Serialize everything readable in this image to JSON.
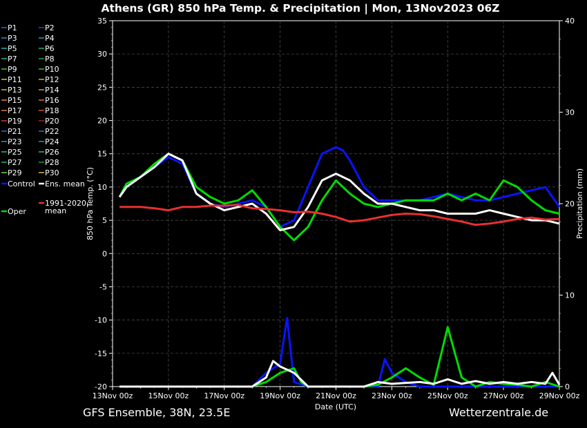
{
  "chart_data": {
    "type": "line",
    "title": "Athens  (GR)  850 hPa Temp. & Precipitation | Mon, 13Nov2023 06Z",
    "ylabel": "850 hPa Temp. (°C)",
    "y2label": "Precipitation (mm)",
    "xlabel": "Date (UTC)",
    "ylim": [
      -20,
      35
    ],
    "y2lim": [
      0,
      40
    ],
    "yticks": [
      "35",
      "30",
      "25",
      "20",
      "15",
      "10",
      "5",
      "0",
      "-5",
      "-10",
      "-15",
      "-20"
    ],
    "y2ticks": [
      "40",
      "30",
      "20",
      "10",
      "0"
    ],
    "xticks": [
      "13Nov 00z",
      "15Nov 00z",
      "17Nov 00z",
      "19Nov 00z",
      "21Nov 00z",
      "23Nov 00z",
      "25Nov 00z",
      "27Nov 00z",
      "29Nov 00z"
    ],
    "x_range_days": [
      13,
      29
    ],
    "grid": true,
    "legend_position": "left",
    "legend": [
      {
        "name": "P1",
        "color": "#3355ff"
      },
      {
        "name": "P2",
        "color": "#2244dd"
      },
      {
        "name": "P3",
        "color": "#2b8cd9"
      },
      {
        "name": "P4",
        "color": "#2a9ad0"
      },
      {
        "name": "P5",
        "color": "#21b0b0"
      },
      {
        "name": "P6",
        "color": "#1fb57a"
      },
      {
        "name": "P7",
        "color": "#22b08a"
      },
      {
        "name": "P8",
        "color": "#1ea055"
      },
      {
        "name": "P9",
        "color": "#3cc83c"
      },
      {
        "name": "P10",
        "color": "#2fbf2f"
      },
      {
        "name": "P11",
        "color": "#c8c84a"
      },
      {
        "name": "P12",
        "color": "#d9b03a"
      },
      {
        "name": "P13",
        "color": "#e0b020"
      },
      {
        "name": "P14",
        "color": "#e09a30"
      },
      {
        "name": "P15",
        "color": "#e08a50"
      },
      {
        "name": "P16",
        "color": "#c87a40"
      },
      {
        "name": "P17",
        "color": "#e07a40"
      },
      {
        "name": "P18",
        "color": "#d05a30"
      },
      {
        "name": "P19",
        "color": "#cc4422"
      },
      {
        "name": "P20",
        "color": "#b02020"
      },
      {
        "name": "P21",
        "color": "#3366cc"
      },
      {
        "name": "P22",
        "color": "#2277cc"
      },
      {
        "name": "P23",
        "color": "#22a0c0"
      },
      {
        "name": "P24",
        "color": "#1aa0b0"
      },
      {
        "name": "P25",
        "color": "#20c0a0"
      },
      {
        "name": "P26",
        "color": "#20c090"
      },
      {
        "name": "P27",
        "color": "#22b070"
      },
      {
        "name": "P28",
        "color": "#1e9a40"
      },
      {
        "name": "P29",
        "color": "#88d040"
      },
      {
        "name": "P30",
        "color": "#c8c830"
      },
      {
        "name": "Control",
        "color": "#0a14ff"
      },
      {
        "name": "Ens. mean",
        "color": "#ffffff"
      },
      {
        "name": "1991-2020 mean",
        "color": "#e83030"
      },
      {
        "name": "Oper",
        "color": "#00dd00"
      }
    ],
    "series": [
      {
        "name": "Control",
        "color": "#0a14ff",
        "x": [
          13.25,
          13.5,
          14,
          14.5,
          15,
          15.5,
          16,
          16.5,
          17,
          17.5,
          18,
          18.5,
          19,
          19.5,
          20,
          20.5,
          21,
          21.25,
          21.5,
          22,
          22.5,
          23,
          23.5,
          24,
          24.5,
          25,
          25.5,
          26,
          26.5,
          27,
          27.5,
          28,
          28.5,
          29
        ],
        "y": [
          8.5,
          10.5,
          11.5,
          13,
          14.5,
          13.5,
          9,
          7.5,
          7,
          7.5,
          8,
          7,
          4,
          5,
          10,
          15,
          16,
          15.5,
          14,
          10,
          8,
          8,
          8,
          8,
          8.5,
          9,
          8.5,
          8,
          8,
          8.5,
          9,
          9.5,
          10,
          7
        ]
      },
      {
        "name": "Oper",
        "color": "#00dd00",
        "x": [
          13.25,
          13.5,
          14,
          14.5,
          15,
          15.5,
          16,
          16.5,
          17,
          17.5,
          18,
          18.5,
          19,
          19.5,
          20,
          20.5,
          21,
          21.5,
          22,
          22.5,
          23,
          23.5,
          24,
          24.5,
          25,
          25.5,
          26,
          26.5,
          27,
          27.5,
          28,
          28.5,
          29
        ],
        "y": [
          8.5,
          10.5,
          11.5,
          13.5,
          15,
          14,
          10,
          8.5,
          7.5,
          8,
          9.5,
          7,
          4,
          2,
          4,
          8,
          11,
          9,
          7.5,
          7,
          7.5,
          8,
          8,
          8,
          9,
          8,
          9,
          8,
          11,
          10,
          8,
          6.5,
          6
        ]
      },
      {
        "name": "Ens. mean",
        "color": "#ffffff",
        "x": [
          13.25,
          13.5,
          14,
          14.5,
          15,
          15.5,
          16,
          16.5,
          17,
          17.5,
          18,
          18.5,
          19,
          19.5,
          20,
          20.5,
          21,
          21.5,
          22,
          22.5,
          23,
          23.5,
          24,
          24.5,
          25,
          25.5,
          26,
          26.5,
          27,
          27.5,
          28,
          28.5,
          29
        ],
        "y": [
          8.5,
          10,
          11.5,
          13,
          15,
          14,
          9,
          7.5,
          6.5,
          7,
          7.5,
          6,
          3.5,
          4,
          7,
          11,
          12,
          11,
          9,
          7.5,
          7.5,
          7,
          6.5,
          6.5,
          6,
          6,
          6,
          6.5,
          6,
          5.5,
          5,
          5,
          4.5
        ]
      },
      {
        "name": "1991-2020 mean",
        "color": "#e83030",
        "x": [
          13.25,
          13.5,
          14,
          14.5,
          15,
          15.5,
          16,
          16.5,
          17,
          17.5,
          18,
          18.5,
          19,
          19.5,
          20,
          20.5,
          21,
          21.5,
          22,
          22.5,
          23,
          23.5,
          24,
          24.5,
          25,
          25.5,
          26,
          26.5,
          27,
          27.5,
          28,
          28.5,
          29
        ],
        "y": [
          7,
          7,
          7,
          6.8,
          6.5,
          7,
          7,
          7.2,
          7.2,
          7.3,
          6.8,
          6.7,
          6.5,
          6.2,
          6.3,
          6,
          5.5,
          4.8,
          5,
          5.4,
          5.8,
          6,
          5.9,
          5.6,
          5.2,
          4.8,
          4.3,
          4.5,
          4.8,
          5.2,
          5.4,
          5.1,
          5.2
        ]
      }
    ],
    "precip_series": [
      {
        "name": "Control",
        "color": "#0a14ff",
        "x": [
          13.25,
          18,
          18.5,
          19,
          19.25,
          19.5,
          20,
          21,
          22,
          22.5,
          22.75,
          23,
          23.5,
          24,
          29
        ],
        "y": [
          0,
          0,
          1.5,
          2.5,
          7.5,
          0.5,
          0,
          0,
          0,
          0,
          3,
          1.5,
          0.5,
          0,
          0
        ]
      },
      {
        "name": "Oper",
        "color": "#00dd00",
        "x": [
          13.25,
          18,
          18.5,
          19,
          19.5,
          19.75,
          20,
          22,
          22.5,
          23,
          23.5,
          24,
          24.5,
          25,
          25.5,
          26,
          26.5,
          27,
          27.5,
          28,
          28.5,
          29
        ],
        "y": [
          0,
          0,
          0.5,
          1.5,
          2,
          0.5,
          0,
          0,
          0.2,
          1,
          2,
          1,
          0.2,
          6.5,
          1,
          0,
          0.5,
          0.3,
          0.2,
          0,
          0.5,
          0
        ]
      },
      {
        "name": "Ens. mean",
        "color": "#ffffff",
        "x": [
          13.25,
          18,
          18.5,
          18.75,
          19,
          19.5,
          20,
          22,
          22.5,
          23,
          24,
          24.5,
          25,
          25.5,
          26,
          26.5,
          27,
          27.5,
          28,
          28.5,
          28.75,
          29
        ],
        "y": [
          0,
          0,
          1,
          2.8,
          2.2,
          1.5,
          0,
          0,
          0.5,
          0.3,
          0.5,
          0.3,
          0.8,
          0.3,
          0.6,
          0.3,
          0.5,
          0.3,
          0.5,
          0.3,
          1.5,
          0.2
        ]
      }
    ]
  },
  "footer": {
    "left": "GFS Ensemble, 38N, 23.5E",
    "right": "Wetterzentrale.de"
  }
}
